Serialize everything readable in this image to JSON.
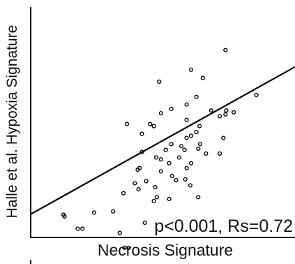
{
  "chart_data": {
    "type": "scatter",
    "xlabel": "Necrosis Signature",
    "ylabel": "Halle et al. Hypoxia Signature",
    "annotation": "p<0.001, Rs=0.72",
    "xlim": [
      0,
      100
    ],
    "ylim": [
      0,
      100
    ],
    "grid": false,
    "legend": "none",
    "colors": {
      "axis": "#000000",
      "points": "#000000",
      "line": "#000000"
    },
    "regression": {
      "x": [
        0,
        100
      ],
      "y": [
        10.1,
        74.0
      ]
    },
    "points": [
      {
        "x": 73.7,
        "y": 81.3
      },
      {
        "x": 60.7,
        "y": 72.8
      },
      {
        "x": 48.6,
        "y": 67.6
      },
      {
        "x": 65.1,
        "y": 69.2
      },
      {
        "x": 62.7,
        "y": 61.0
      },
      {
        "x": 85.4,
        "y": 61.8
      },
      {
        "x": 59.0,
        "y": 57.7
      },
      {
        "x": 53.2,
        "y": 55.8
      },
      {
        "x": 68.3,
        "y": 55.1
      },
      {
        "x": 74.0,
        "y": 55.1
      },
      {
        "x": 76.8,
        "y": 54.3
      },
      {
        "x": 73.7,
        "y": 53.4
      },
      {
        "x": 49.3,
        "y": 53.9
      },
      {
        "x": 71.5,
        "y": 52.6
      },
      {
        "x": 59.0,
        "y": 51.0
      },
      {
        "x": 36.4,
        "y": 49.2
      },
      {
        "x": 45.2,
        "y": 49.2
      },
      {
        "x": 46.6,
        "y": 48.3
      },
      {
        "x": 63.9,
        "y": 48.3
      },
      {
        "x": 62.7,
        "y": 45.7
      },
      {
        "x": 42.1,
        "y": 45.0
      },
      {
        "x": 60.7,
        "y": 44.1
      },
      {
        "x": 59.0,
        "y": 43.2
      },
      {
        "x": 72.9,
        "y": 43.2
      },
      {
        "x": 64.1,
        "y": 40.5
      },
      {
        "x": 53.2,
        "y": 40.5
      },
      {
        "x": 57.0,
        "y": 39.6
      },
      {
        "x": 63.4,
        "y": 38.5
      },
      {
        "x": 51.1,
        "y": 38.0
      },
      {
        "x": 58.2,
        "y": 38.0
      },
      {
        "x": 42.1,
        "y": 37.1
      },
      {
        "x": 66.3,
        "y": 36.4
      },
      {
        "x": 71.5,
        "y": 36.4
      },
      {
        "x": 47.5,
        "y": 34.7
      },
      {
        "x": 56.2,
        "y": 34.7
      },
      {
        "x": 49.3,
        "y": 33.9
      },
      {
        "x": 52.4,
        "y": 32.2
      },
      {
        "x": 60.7,
        "y": 32.2
      },
      {
        "x": 41.2,
        "y": 30.1
      },
      {
        "x": 59.0,
        "y": 30.1
      },
      {
        "x": 40.5,
        "y": 29.4
      },
      {
        "x": 49.3,
        "y": 28.7
      },
      {
        "x": 53.5,
        "y": 26.7
      },
      {
        "x": 58.5,
        "y": 25.2
      },
      {
        "x": 55.0,
        "y": 24.8
      },
      {
        "x": 43.7,
        "y": 24.4
      },
      {
        "x": 39.4,
        "y": 23.5
      },
      {
        "x": 60.4,
        "y": 22.6
      },
      {
        "x": 47.1,
        "y": 21.8
      },
      {
        "x": 40.8,
        "y": 20.9
      },
      {
        "x": 35.1,
        "y": 19.2
      },
      {
        "x": 63.4,
        "y": 17.5
      },
      {
        "x": 47.7,
        "y": 17.5
      },
      {
        "x": 52.4,
        "y": 16.7
      },
      {
        "x": 46.6,
        "y": 15.8
      },
      {
        "x": 31.2,
        "y": 11.3
      },
      {
        "x": 24.0,
        "y": 10.8
      },
      {
        "x": 12.4,
        "y": 9.9
      },
      {
        "x": 12.8,
        "y": 9.1
      },
      {
        "x": 43.2,
        "y": 6.4
      },
      {
        "x": 19.6,
        "y": 3.8
      },
      {
        "x": 17.8,
        "y": 3.8
      },
      {
        "x": 33.7,
        "y": 2.0
      },
      {
        "x": 35.5,
        "y": -4.5
      },
      {
        "x": 37.0,
        "y": -4.5
      }
    ]
  }
}
